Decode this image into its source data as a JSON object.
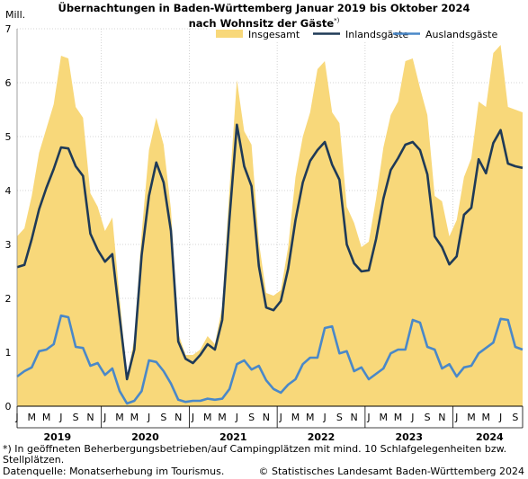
{
  "chart_data": {
    "type": "line",
    "title_line1": "Übernachtungen in Baden-Württemberg Januar 2019 bis Oktober 2024",
    "title_line2": "nach Wohnsitz der Gäste",
    "title_marker": "*)",
    "ylabel": "Mill.",
    "ylim": [
      0,
      7
    ],
    "yticks": [
      0,
      1,
      2,
      3,
      4,
      5,
      6,
      7
    ],
    "grid": true,
    "legend_placement": "top-right",
    "month_labels": [
      "J",
      "M",
      "M",
      "J",
      "S",
      "N"
    ],
    "years": [
      "2019",
      "2020",
      "2021",
      "2022",
      "2023",
      "2024"
    ],
    "x": [
      "2019-01",
      "2019-02",
      "2019-03",
      "2019-04",
      "2019-05",
      "2019-06",
      "2019-07",
      "2019-08",
      "2019-09",
      "2019-10",
      "2019-11",
      "2019-12",
      "2020-01",
      "2020-02",
      "2020-03",
      "2020-04",
      "2020-05",
      "2020-06",
      "2020-07",
      "2020-08",
      "2020-09",
      "2020-10",
      "2020-11",
      "2020-12",
      "2021-01",
      "2021-02",
      "2021-03",
      "2021-04",
      "2021-05",
      "2021-06",
      "2021-07",
      "2021-08",
      "2021-09",
      "2021-10",
      "2021-11",
      "2021-12",
      "2022-01",
      "2022-02",
      "2022-03",
      "2022-04",
      "2022-05",
      "2022-06",
      "2022-07",
      "2022-08",
      "2022-09",
      "2022-10",
      "2022-11",
      "2022-12",
      "2023-01",
      "2023-02",
      "2023-03",
      "2023-04",
      "2023-05",
      "2023-06",
      "2023-07",
      "2023-08",
      "2023-09",
      "2023-10",
      "2023-11",
      "2023-12",
      "2024-01",
      "2024-02",
      "2024-03",
      "2024-04",
      "2024-05",
      "2024-06",
      "2024-07",
      "2024-08",
      "2024-09",
      "2024-10"
    ],
    "series": [
      {
        "name": "Insgesamt",
        "color": "#f8d87a",
        "values": [
          3.15,
          3.3,
          3.9,
          4.7,
          5.15,
          5.6,
          6.5,
          6.45,
          5.55,
          5.35,
          3.95,
          3.7,
          3.25,
          3.5,
          2.0,
          0.55,
          1.25,
          3.2,
          4.75,
          5.35,
          4.85,
          3.65,
          1.35,
          0.95,
          0.95,
          1.05,
          1.3,
          1.15,
          1.85,
          4.05,
          6.05,
          5.1,
          4.85,
          3.05,
          2.1,
          2.05,
          2.15,
          2.95,
          4.25,
          5.0,
          5.45,
          6.25,
          6.4,
          5.45,
          5.25,
          3.7,
          3.4,
          2.95,
          3.05,
          3.85,
          4.8,
          5.4,
          5.65,
          6.4,
          6.45,
          5.9,
          5.4,
          3.9,
          3.8,
          3.15,
          3.45,
          4.25,
          4.6,
          5.65,
          5.55,
          6.55,
          6.7,
          5.55,
          5.5,
          5.45
        ]
      },
      {
        "name": "Inlandsgäste",
        "color": "#1f3a57",
        "values": [
          2.58,
          2.62,
          3.1,
          3.65,
          4.05,
          4.4,
          4.8,
          4.78,
          4.45,
          4.27,
          3.2,
          2.9,
          2.68,
          2.82,
          1.65,
          0.5,
          1.05,
          2.8,
          3.9,
          4.52,
          4.15,
          3.25,
          1.2,
          0.88,
          0.8,
          0.95,
          1.15,
          1.05,
          1.6,
          3.5,
          5.22,
          4.45,
          4.08,
          2.6,
          1.83,
          1.78,
          1.95,
          2.55,
          3.45,
          4.15,
          4.55,
          4.75,
          4.9,
          4.48,
          4.2,
          3.0,
          2.65,
          2.5,
          2.52,
          3.1,
          3.85,
          4.38,
          4.6,
          4.85,
          4.9,
          4.75,
          4.3,
          3.15,
          2.95,
          2.63,
          2.78,
          3.55,
          3.68,
          4.58,
          4.32,
          4.88,
          5.12,
          4.5,
          4.45,
          4.42
        ]
      },
      {
        "name": "Auslandsgäste",
        "color": "#4a88c8",
        "values": [
          0.55,
          0.65,
          0.72,
          1.02,
          1.05,
          1.15,
          1.68,
          1.65,
          1.1,
          1.08,
          0.75,
          0.8,
          0.58,
          0.7,
          0.28,
          0.05,
          0.1,
          0.28,
          0.85,
          0.82,
          0.65,
          0.42,
          0.12,
          0.08,
          0.1,
          0.1,
          0.14,
          0.12,
          0.14,
          0.32,
          0.78,
          0.85,
          0.68,
          0.75,
          0.48,
          0.32,
          0.25,
          0.4,
          0.5,
          0.78,
          0.9,
          0.9,
          1.45,
          1.48,
          0.98,
          1.02,
          0.65,
          0.72,
          0.5,
          0.6,
          0.7,
          0.98,
          1.05,
          1.05,
          1.6,
          1.55,
          1.1,
          1.05,
          0.7,
          0.78,
          0.55,
          0.72,
          0.75,
          0.98,
          1.08,
          1.18,
          1.62,
          1.6,
          1.1,
          1.05
        ]
      }
    ]
  },
  "footnote": "*) In geöffneten Beherbergungsbetrieben/auf Campingplätzen mit mind. 10 Schlafgelegenheiten bzw. Stellplätzen.",
  "source": "Datenquelle: Monatserhebung im Tourismus.",
  "copyright": "© Statistisches Landesamt Baden-Württemberg 2024"
}
